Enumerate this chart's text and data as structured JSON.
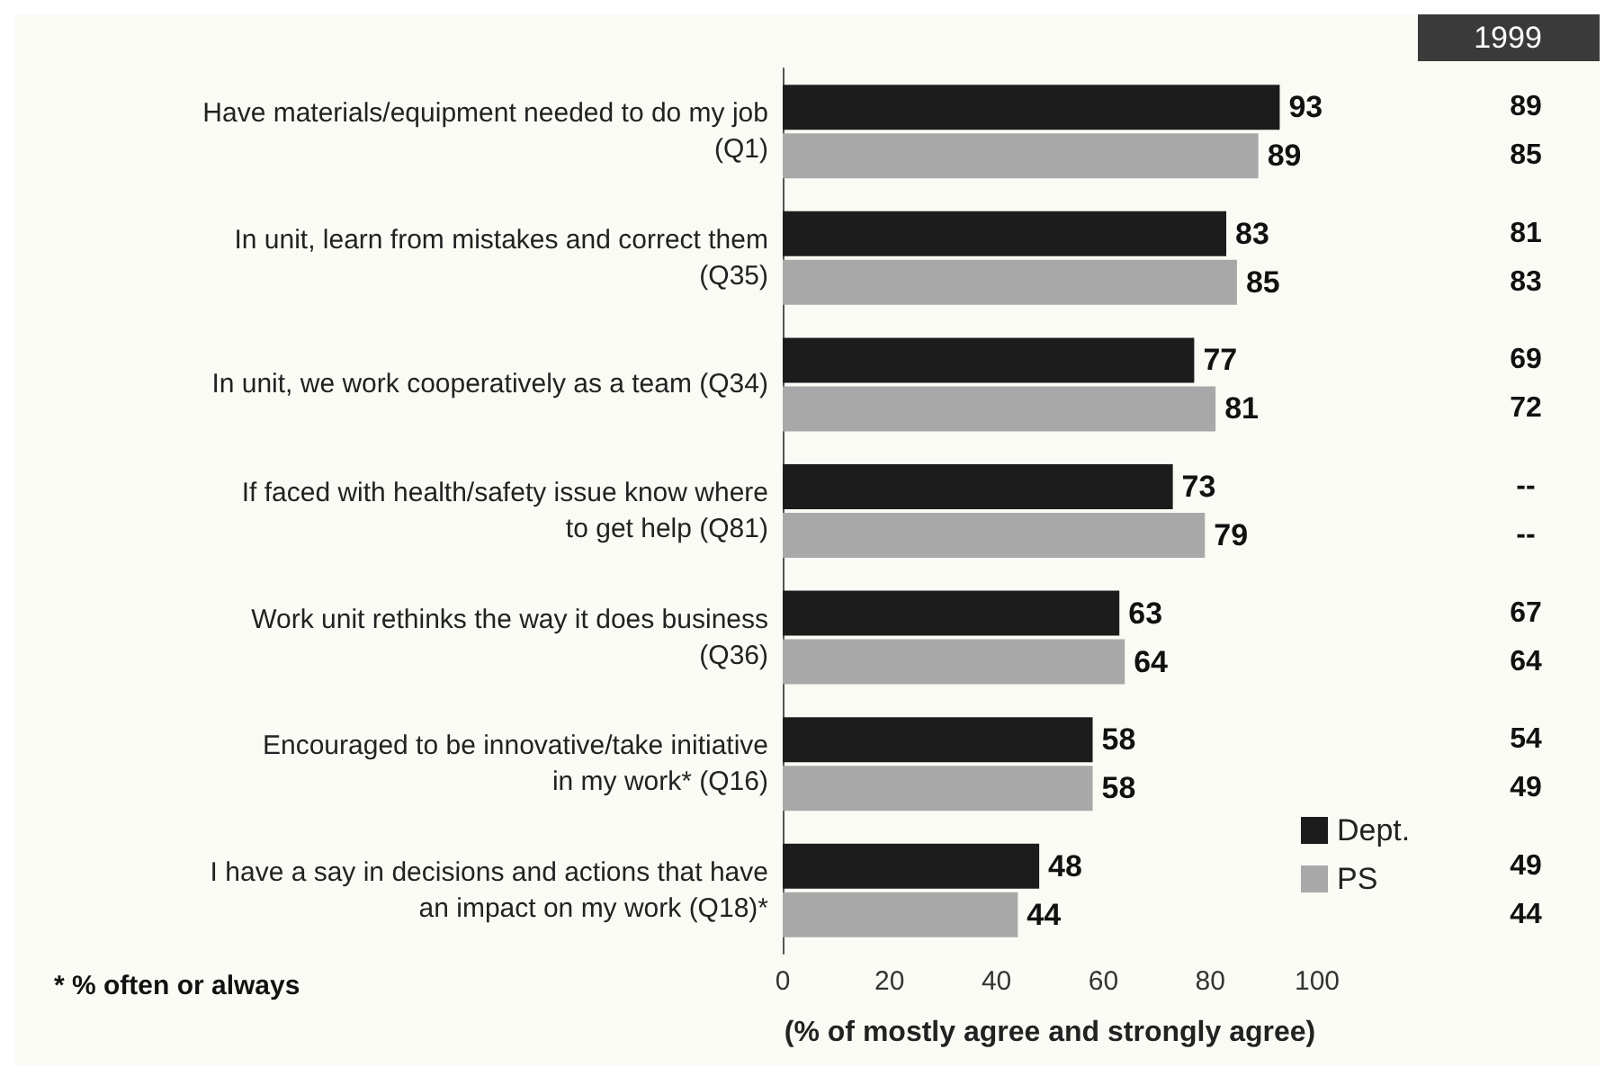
{
  "chart_data": {
    "type": "bar",
    "orientation": "horizontal",
    "categories": [
      "Have materials/equipment needed to do my job\n(Q1)",
      "In unit, learn from mistakes and correct them\n(Q35)",
      "In unit, we work cooperatively as a team (Q34)",
      "If faced with health/safety issue know where\nto get help (Q81)",
      "Work unit rethinks the way it does business\n(Q36)",
      "Encouraged to be innovative/take initiative\nin my work* (Q16)",
      "I have a say in decisions and actions that have\nan impact on my work (Q18)*"
    ],
    "series": [
      {
        "name": "Dept.",
        "color": "#1c1c1c",
        "values": [
          93,
          83,
          77,
          73,
          63,
          58,
          48
        ]
      },
      {
        "name": "PS",
        "color": "#a8a8a8",
        "values": [
          89,
          85,
          81,
          79,
          64,
          58,
          44
        ]
      }
    ],
    "xlim": [
      0,
      100
    ],
    "xticks": [
      0,
      20,
      40,
      60,
      80,
      100
    ],
    "xlabel": "(% of mostly agree and strongly agree)",
    "data_labels": true,
    "legend": "bottom right",
    "grid": false,
    "annotations": [
      "1999",
      "89",
      "85",
      "81",
      "83",
      "69",
      "72",
      "--",
      "--",
      "67",
      "64",
      "54",
      "49",
      "49",
      "44",
      "* % often or always"
    ]
  }
}
